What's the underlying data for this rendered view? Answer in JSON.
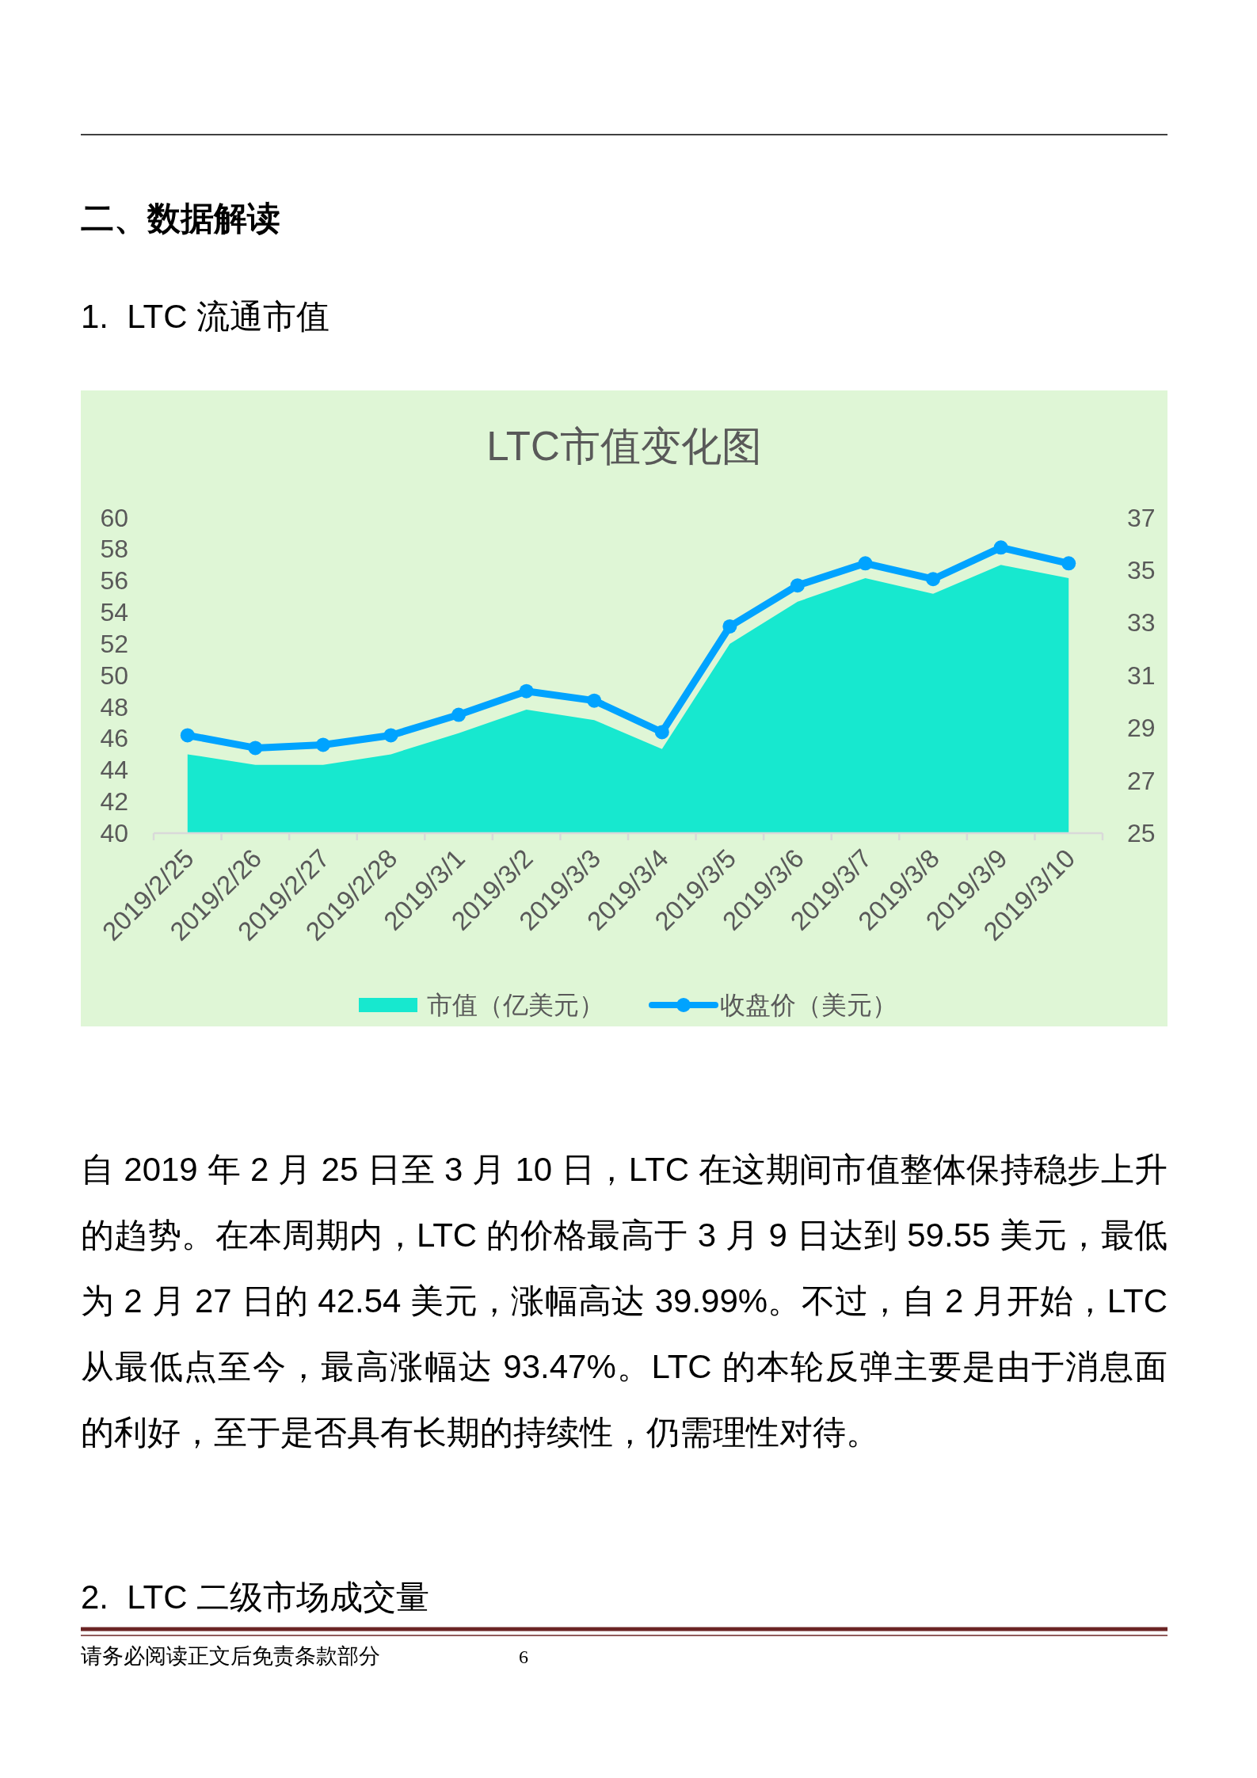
{
  "chart_data": {
    "type": "area",
    "title": "LTC市值变化图",
    "categories": [
      "2019/2/25",
      "2019/2/26",
      "2019/2/27",
      "2019/2/28",
      "2019/3/1",
      "2019/3/2",
      "2019/3/3",
      "2019/3/4",
      "2019/3/5",
      "2019/3/6",
      "2019/3/7",
      "2019/3/8",
      "2019/3/9",
      "2019/3/10"
    ],
    "series": [
      {
        "name": "市值（亿美元）",
        "axis": "y2",
        "color": "#17e8cf",
        "values": [
          28.0,
          27.6,
          27.6,
          28.0,
          28.8,
          29.7,
          29.3,
          28.2,
          32.2,
          33.8,
          34.7,
          34.1,
          35.2,
          34.7
        ]
      },
      {
        "name": "收盘价（美元）",
        "type": "line",
        "marker": "circle",
        "color": "#00a3ff",
        "values": [
          46.2,
          45.4,
          45.6,
          46.2,
          47.5,
          49.0,
          48.4,
          46.4,
          53.1,
          55.7,
          57.1,
          56.1,
          58.1,
          57.1
        ]
      }
    ],
    "ylim": [
      40,
      60
    ],
    "yticks": [
      40,
      42,
      44,
      46,
      48,
      50,
      52,
      54,
      56,
      58,
      60
    ],
    "y2lim": [
      25,
      37
    ],
    "y2ticks": [
      25,
      27,
      29,
      31,
      33,
      35,
      37
    ],
    "legend": "bottom",
    "annotations": [
      "二、数据解读",
      "1.  LTC 流通市值",
      "自 2019 年 2 月 25 日至 3 月 10 日，LTC 在这期间市值整体保持稳步上升的趋势。在本周期内，LTC 的价格最高于 3 月 9 日达到 59.55 美元，最低为 2 月 27 日的 42.54 美元，涨幅高达 39.99%。不过，自 2 月开始，LTC 从最低点至今，最高涨幅达 93.47%。LTC 的本轮反弹主要是由于消息面的利好，至于是否具有长期的持续性，仍需理性对待。",
      "2.  LTC 二级市场成交量",
      "请务必阅读正文后免责条款部分",
      "6"
    ]
  }
}
